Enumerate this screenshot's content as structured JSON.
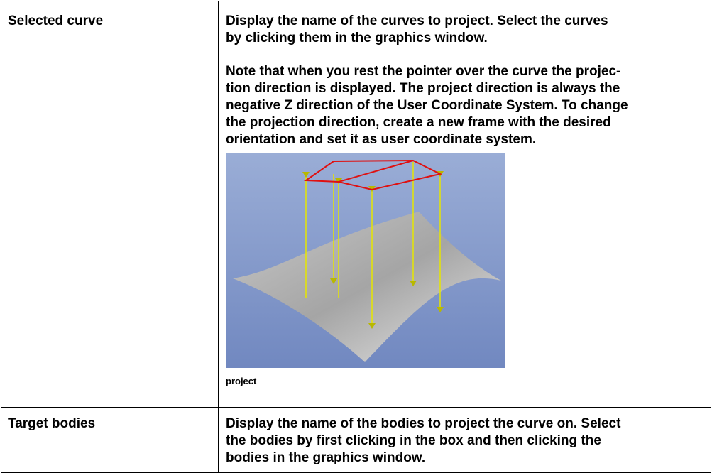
{
  "table": {
    "rows": [
      {
        "label": "Selected curve",
        "paragraphs": [
          [
            "Display the name of the curves to project. Select the curves",
            "by clicking them in the graphics window."
          ],
          [
            "Note that when you rest the pointer over the curve the projec-",
            "tion direction is displayed. The project direction is always the",
            "negative Z direction of the User Coordinate System. To change",
            "the projection direction, create a new frame with the desired",
            "orientation and set it as user coordinate system."
          ]
        ],
        "figure_caption": "project"
      },
      {
        "label": "Target bodies",
        "paragraphs": [
          [
            "Display the name of the bodies to project the curve on. Select",
            "the bodies by first clicking in the box and then clicking the",
            "bodies in the graphics window."
          ]
        ]
      }
    ]
  }
}
